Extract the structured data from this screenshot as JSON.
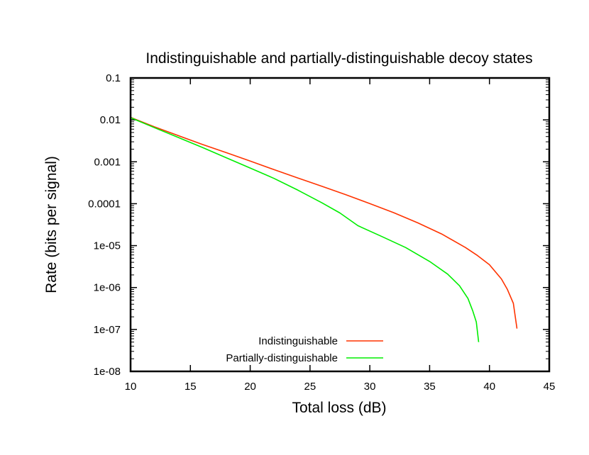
{
  "chart_data": {
    "type": "line",
    "title": "Indistinguishable and partially-distinguishable decoy states",
    "xlabel": "Total loss (dB)",
    "ylabel": "Rate (bits per signal)",
    "xlim": [
      10,
      45
    ],
    "ylim": [
      1e-08,
      0.1
    ],
    "yscale": "log",
    "xticks": [
      10,
      15,
      20,
      25,
      30,
      35,
      40,
      45
    ],
    "xtick_labels": [
      "10",
      "15",
      "20",
      "25",
      "30",
      "35",
      "40",
      "45"
    ],
    "yticks": [
      1e-08,
      1e-07,
      1e-06,
      1e-05,
      0.0001,
      0.001,
      0.01,
      0.1
    ],
    "ytick_labels": [
      "1e-08",
      "1e-07",
      "1e-06",
      "1e-05",
      "0.0001",
      "0.001",
      "0.01",
      "0.1"
    ],
    "grid": false,
    "legend_position": "bottom-center",
    "series": [
      {
        "name": "Indistinguishable",
        "color": "#ff3300",
        "x": [
          10,
          12,
          14,
          16,
          18,
          20,
          22,
          24,
          26,
          28,
          30,
          32,
          34,
          36,
          38,
          39,
          40,
          41,
          41.5,
          42,
          42.3
        ],
        "y": [
          0.0115,
          0.0068,
          0.0042,
          0.0026,
          0.00165,
          0.00104,
          0.00065,
          0.00041,
          0.00026,
          0.000164,
          0.000101,
          6.1e-05,
          3.5e-05,
          1.9e-05,
          9e-06,
          5.8e-06,
          3.5e-06,
          1.6e-06,
          9e-07,
          4.2e-07,
          1.05e-07
        ]
      },
      {
        "name": "Partially-distinguishable",
        "color": "#00ee00",
        "x": [
          10,
          12,
          14,
          16,
          18,
          20,
          22,
          24,
          26,
          27.5,
          29,
          31,
          33,
          35,
          36.5,
          37.5,
          38.2,
          38.6,
          38.9,
          39.1
        ],
        "y": [
          0.0113,
          0.0065,
          0.0038,
          0.0022,
          0.00125,
          0.00071,
          0.0004,
          0.00021,
          0.000105,
          6e-05,
          3e-05,
          1.65e-05,
          9e-06,
          4.2e-06,
          2.1e-06,
          1.1e-06,
          5.5e-07,
          2.8e-07,
          1.5e-07,
          5e-08
        ]
      }
    ]
  }
}
